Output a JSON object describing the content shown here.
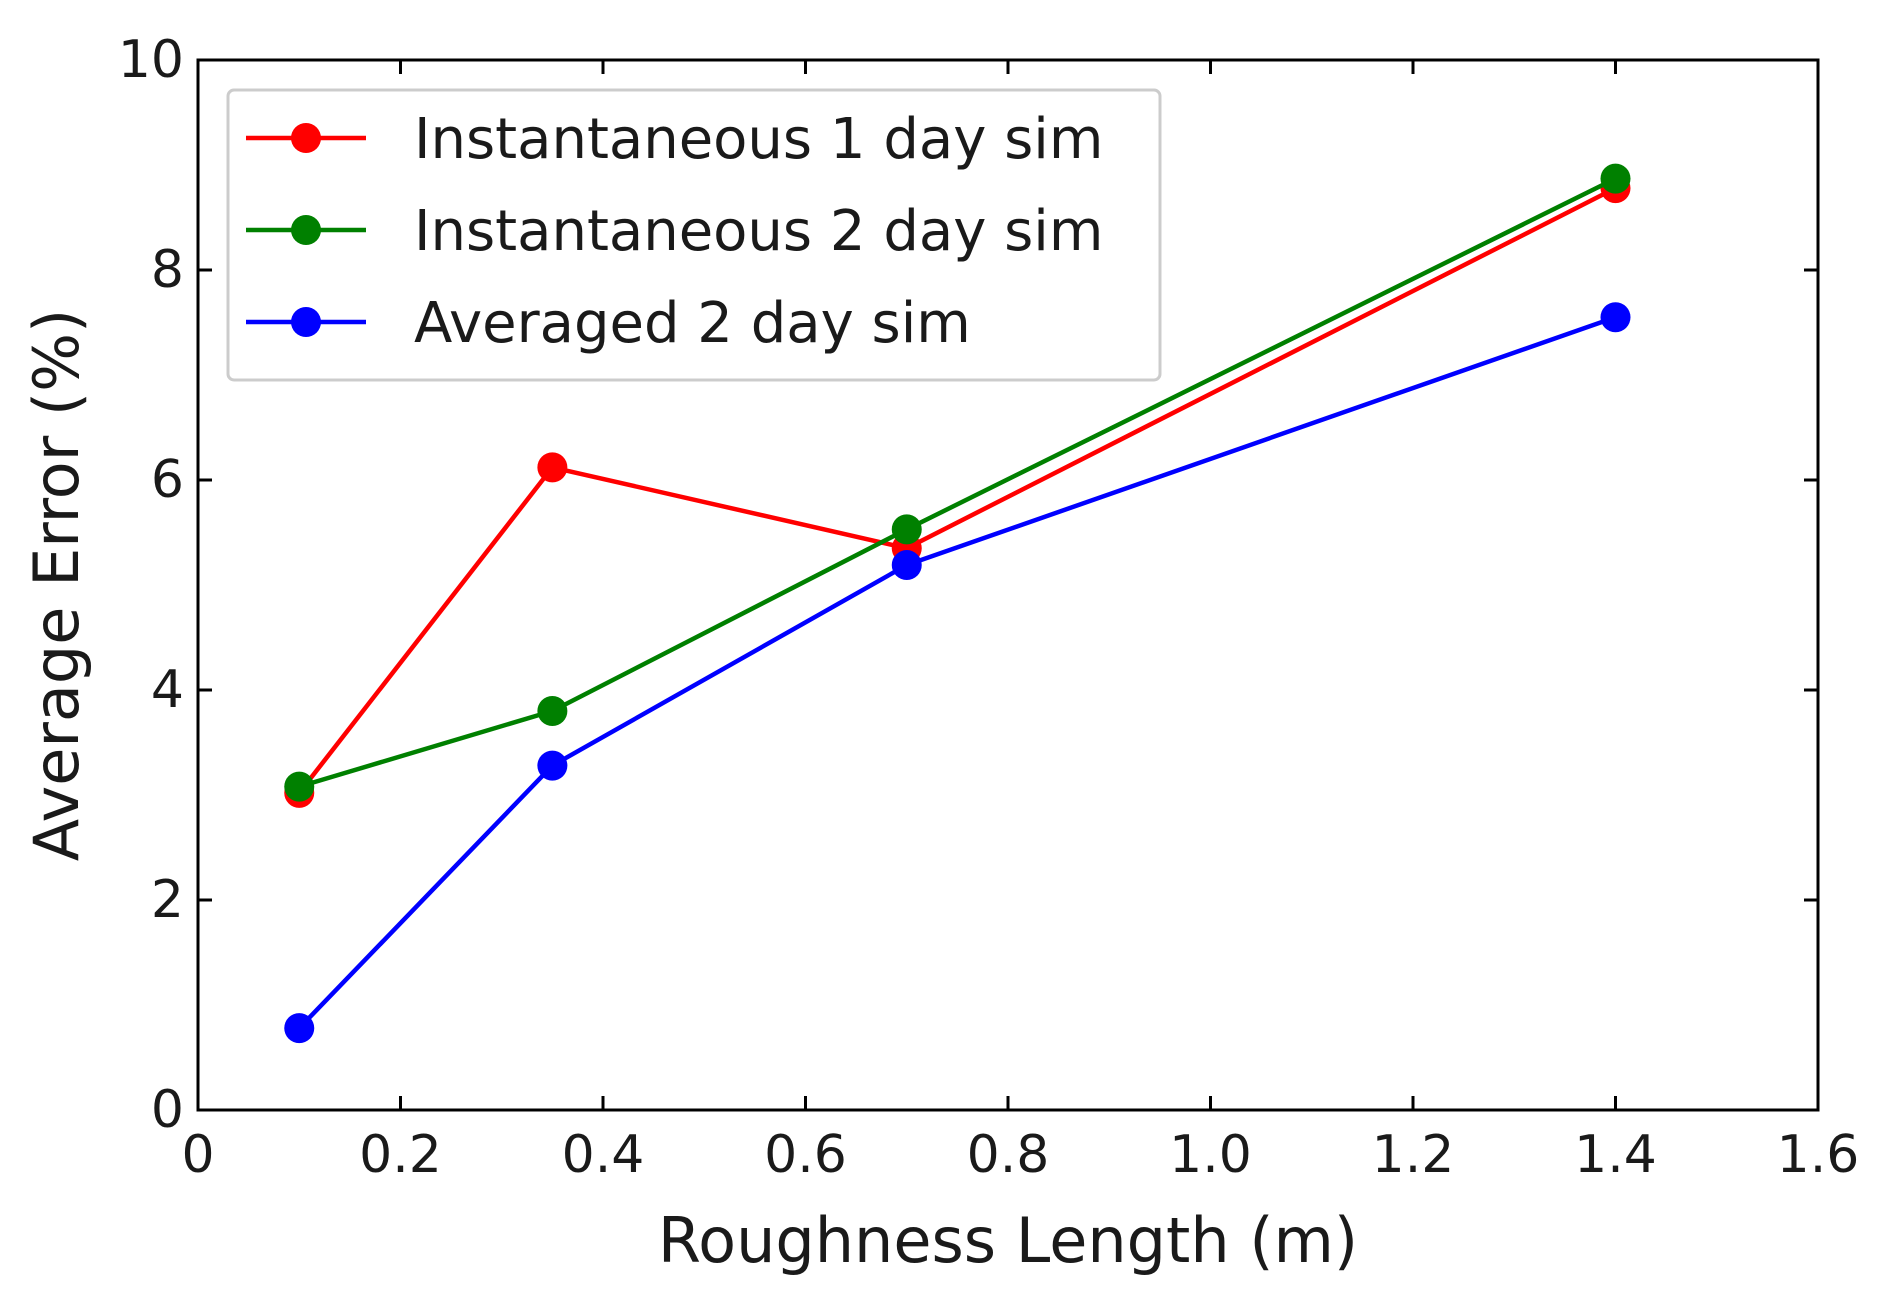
{
  "chart_data": {
    "type": "line",
    "title": "",
    "xlabel": "Roughness Length (m)",
    "ylabel": "Average Error (%)",
    "xlim": [
      0,
      1.6
    ],
    "ylim": [
      0,
      10
    ],
    "x_ticks": [
      0,
      0.2,
      0.4,
      0.6,
      0.8,
      1.0,
      1.2,
      1.4,
      1.6
    ],
    "x_tick_labels": [
      "0",
      "0.2",
      "0.4",
      "0.6",
      "0.8",
      "1.0",
      "1.2",
      "1.4",
      "1.6"
    ],
    "y_ticks": [
      0,
      2,
      4,
      6,
      8,
      10
    ],
    "y_tick_labels": [
      "0",
      "2",
      "4",
      "6",
      "8",
      "10"
    ],
    "grid": false,
    "legend_position": "top-left",
    "series": [
      {
        "name": "Instantaneous 1 day sim",
        "color": "#ff0000",
        "x": [
          0.1,
          0.35,
          0.7,
          1.4
        ],
        "values": [
          3.02,
          6.12,
          5.35,
          8.78
        ]
      },
      {
        "name": "Instantaneous 2 day sim",
        "color": "#008000",
        "x": [
          0.1,
          0.35,
          0.7,
          1.4
        ],
        "values": [
          3.08,
          3.8,
          5.53,
          8.87
        ]
      },
      {
        "name": "Averaged 2 day sim",
        "color": "#0000ff",
        "x": [
          0.1,
          0.35,
          0.7,
          1.4
        ],
        "values": [
          0.78,
          3.28,
          5.19,
          7.55
        ]
      }
    ]
  }
}
